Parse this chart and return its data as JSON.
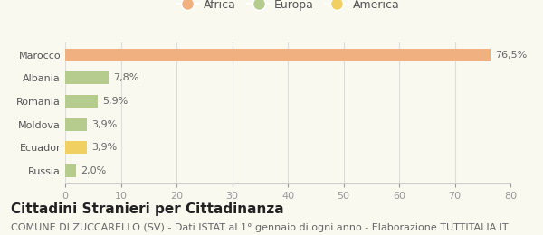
{
  "categories": [
    "Russia",
    "Ecuador",
    "Moldova",
    "Romania",
    "Albania",
    "Marocco"
  ],
  "values": [
    2.0,
    3.9,
    3.9,
    5.9,
    7.8,
    76.5
  ],
  "labels": [
    "2,0%",
    "3,9%",
    "3,9%",
    "5,9%",
    "7,8%",
    "76,5%"
  ],
  "colors": [
    "#b5cc8e",
    "#f0d060",
    "#b5cc8e",
    "#b5cc8e",
    "#b5cc8e",
    "#f0b080"
  ],
  "legend_items": [
    {
      "label": "Africa",
      "color": "#f0b080"
    },
    {
      "label": "Europa",
      "color": "#b5cc8e"
    },
    {
      "label": "America",
      "color": "#f0d060"
    }
  ],
  "xlim": [
    0,
    80
  ],
  "xticks": [
    0,
    10,
    20,
    30,
    40,
    50,
    60,
    70,
    80
  ],
  "title": "Cittadini Stranieri per Cittadinanza",
  "subtitle": "COMUNE DI ZUCCARELLO (SV) - Dati ISTAT al 1° gennaio di ogni anno - Elaborazione TUTTITALIA.IT",
  "background_color": "#f9f9f0",
  "bar_height": 0.55,
  "title_fontsize": 11,
  "subtitle_fontsize": 8,
  "label_fontsize": 8,
  "tick_fontsize": 8
}
